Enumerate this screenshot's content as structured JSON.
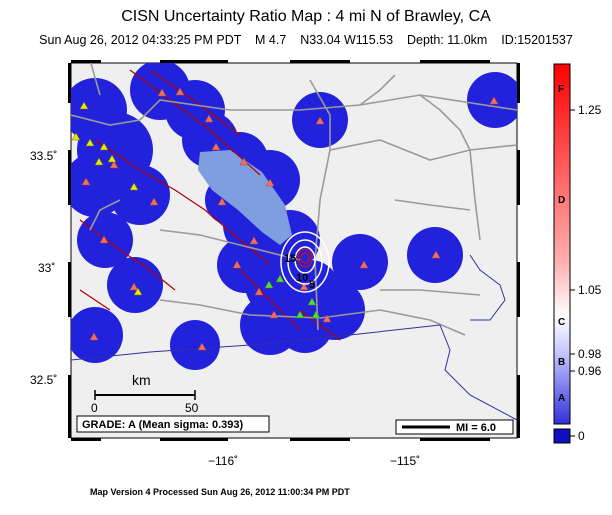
{
  "header": {
    "title": "CISN Uncertainty Ratio Map : 4 mi N of Brawley, CA",
    "subtitle": "Sun Aug 26, 2012 04:33:25 PM PDT    M 4.7    N33.04 W115.53    Depth: 11.0km    ID:15201537"
  },
  "axes": {
    "lat_ticks": [
      "33.5˚",
      "33˚",
      "32.5˚"
    ],
    "lon_ticks": [
      "−116˚",
      "−115˚"
    ]
  },
  "contours": {
    "labels": [
      "15",
      "10",
      "5"
    ]
  },
  "scalebar": {
    "label": "km",
    "ticks": [
      "0",
      "50"
    ]
  },
  "grade": {
    "text": "GRADE: A (Mean sigma: 0.393)"
  },
  "mi_legend": {
    "text": "MI = 6.0"
  },
  "colorbar": {
    "right_labels": [
      "1.25",
      "1.05",
      "0.98",
      "0.96",
      "0"
    ],
    "grade_letters": [
      "F",
      "D",
      "C",
      "B",
      "A"
    ]
  },
  "footer": {
    "text": "Map Version 4 Processed Sun Aug 26, 2012 11:00:34 PM PDT"
  },
  "colors": {
    "station_triangle": "#f07060",
    "seismic_station": "#e8e800",
    "accent_red": "#d01010",
    "blob_blue": "#2222dd"
  }
}
